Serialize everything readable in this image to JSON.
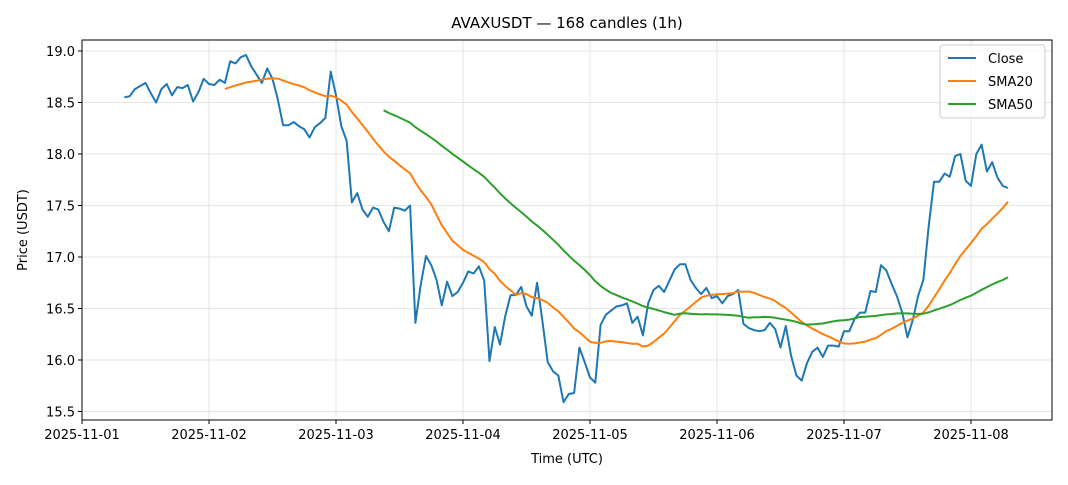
{
  "chart_data": {
    "type": "line",
    "title": "AVAXUSDT — 168 candles (1h)",
    "xlabel": "Time (UTC)",
    "ylabel": "Price (USDT)",
    "x_start": "2025-11-01 08:00",
    "x_interval": "1h",
    "xlim": [
      "2025-11-01 00:00",
      "2025-11-08 16:00"
    ],
    "ylim": [
      15.45,
      19.1
    ],
    "x_ticks": [
      "2025-11-01",
      "2025-11-02",
      "2025-11-03",
      "2025-11-04",
      "2025-11-05",
      "2025-11-06",
      "2025-11-07",
      "2025-11-08"
    ],
    "y_ticks": [
      "15.5",
      "16.0",
      "16.5",
      "17.0",
      "17.5",
      "18.0",
      "18.5",
      "19.0"
    ],
    "grid": true,
    "legend_position": "top-right",
    "series": [
      {
        "name": "Close",
        "color": "#1f77b4",
        "values": [
          18.55,
          18.56,
          18.63,
          18.66,
          18.69,
          18.59,
          18.5,
          18.63,
          18.68,
          18.57,
          18.65,
          18.64,
          18.67,
          18.51,
          18.6,
          18.73,
          18.68,
          18.67,
          18.72,
          18.69,
          18.9,
          18.88,
          18.94,
          18.96,
          18.85,
          18.77,
          18.69,
          18.83,
          18.73,
          18.53,
          18.28,
          18.28,
          18.31,
          18.27,
          18.24,
          18.16,
          18.26,
          18.3,
          18.35,
          18.8,
          18.57,
          18.27,
          18.13,
          17.53,
          17.62,
          17.46,
          17.39,
          17.48,
          17.46,
          17.34,
          17.25,
          17.48,
          17.47,
          17.45,
          17.5,
          16.36,
          16.73,
          17.01,
          16.92,
          16.78,
          16.53,
          16.76,
          16.62,
          16.66,
          16.75,
          16.86,
          16.84,
          16.91,
          16.77,
          15.99,
          16.32,
          16.15,
          16.43,
          16.63,
          16.63,
          16.71,
          16.52,
          16.43,
          16.75,
          16.38,
          15.98,
          15.89,
          15.85,
          15.59,
          15.67,
          15.68,
          16.12,
          15.98,
          15.83,
          15.78,
          16.34,
          16.44,
          16.48,
          16.52,
          16.53,
          16.55,
          16.36,
          16.42,
          16.24,
          16.55,
          16.68,
          16.72,
          16.66,
          16.77,
          16.88,
          16.93,
          16.93,
          16.78,
          16.7,
          16.64,
          16.7,
          16.6,
          16.62,
          16.55,
          16.62,
          16.64,
          16.68,
          16.35,
          16.31,
          16.29,
          16.28,
          16.29,
          16.36,
          16.3,
          16.12,
          16.33,
          16.04,
          15.85,
          15.8,
          15.97,
          16.08,
          16.12,
          16.03,
          16.14,
          16.14,
          16.13,
          16.28,
          16.28,
          16.4,
          16.46,
          16.46,
          16.67,
          16.66,
          16.92,
          16.87,
          16.74,
          16.62,
          16.46,
          16.22,
          16.39,
          16.62,
          16.78,
          17.3,
          17.73,
          17.73,
          17.81,
          17.78,
          17.98,
          18.0,
          17.74,
          17.69,
          18.0,
          18.09,
          17.83,
          17.92,
          17.77,
          17.69,
          17.67
        ]
      },
      {
        "name": "SMA20",
        "color": "#ff7f0e",
        "window": 20
      },
      {
        "name": "SMA50",
        "color": "#2ca02c",
        "window": 50
      }
    ]
  }
}
